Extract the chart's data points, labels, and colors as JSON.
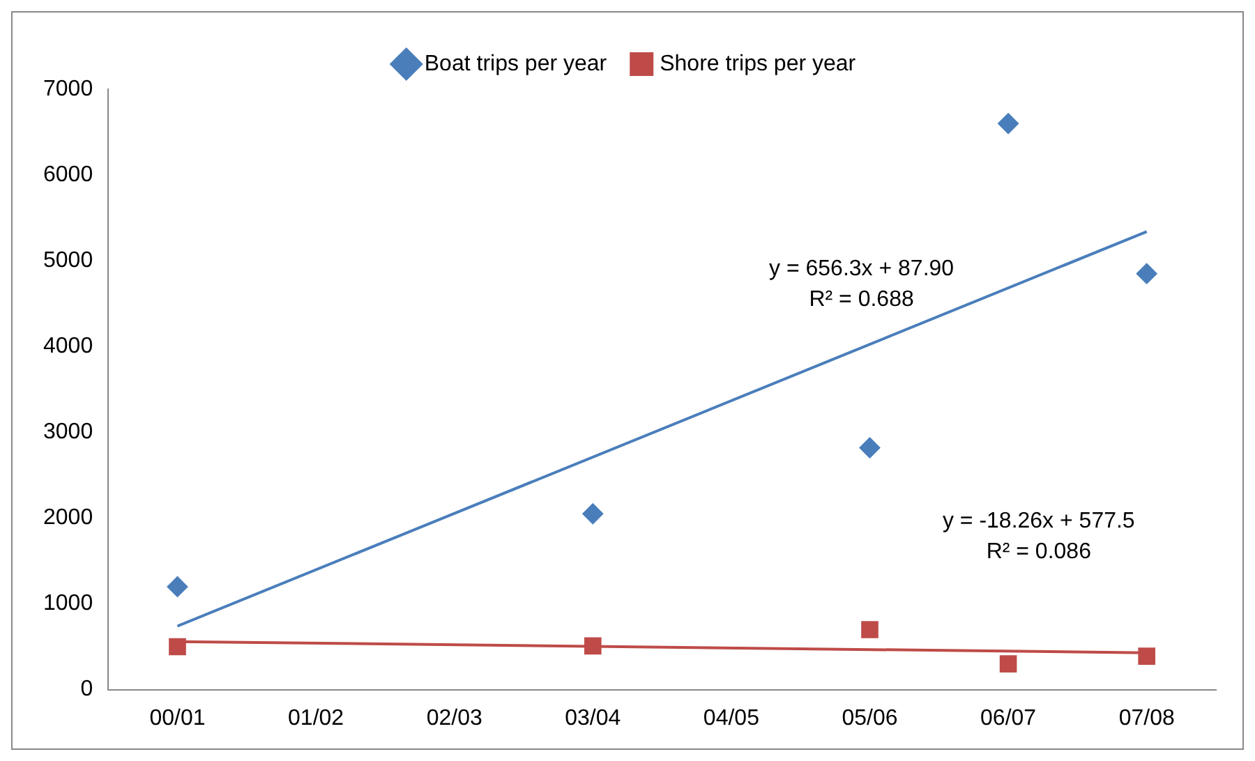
{
  "chart_data": {
    "type": "scatter",
    "categories": [
      "00/01",
      "01/02",
      "02/03",
      "03/04",
      "04/05",
      "05/06",
      "06/07",
      "07/08"
    ],
    "series": [
      {
        "name": "Boat trips per year",
        "type": "scatter",
        "color": "#4a7ebb",
        "marker": "diamond",
        "x": [
          "00/01",
          "03/04",
          "05/06",
          "06/07",
          "07/08"
        ],
        "values": [
          1200,
          2050,
          2820,
          6600,
          4850
        ]
      },
      {
        "name": "Shore trips per year",
        "type": "scatter",
        "color": "#be4b48",
        "marker": "square",
        "x": [
          "00/01",
          "03/04",
          "05/06",
          "06/07",
          "07/08"
        ],
        "values": [
          500,
          510,
          700,
          300,
          390
        ]
      },
      {
        "type": "line",
        "color": "#4a7ebb",
        "marker": "none",
        "x": [
          "00/01",
          "07/08"
        ],
        "values": [
          740,
          5340
        ]
      },
      {
        "type": "line",
        "color": "#be4b48",
        "marker": "none",
        "x": [
          "00/01",
          "07/08"
        ],
        "values": [
          560,
          430
        ]
      }
    ],
    "ylim": [
      0,
      7000
    ],
    "yticks": [
      0,
      1000,
      2000,
      3000,
      4000,
      5000,
      6000,
      7000
    ],
    "grid": false,
    "legend": "top",
    "annotations": [
      "y = 656.3x + 87.90\nR² = 0.688",
      "y = -18.26x + 577.5\nR² = 0.086"
    ]
  }
}
